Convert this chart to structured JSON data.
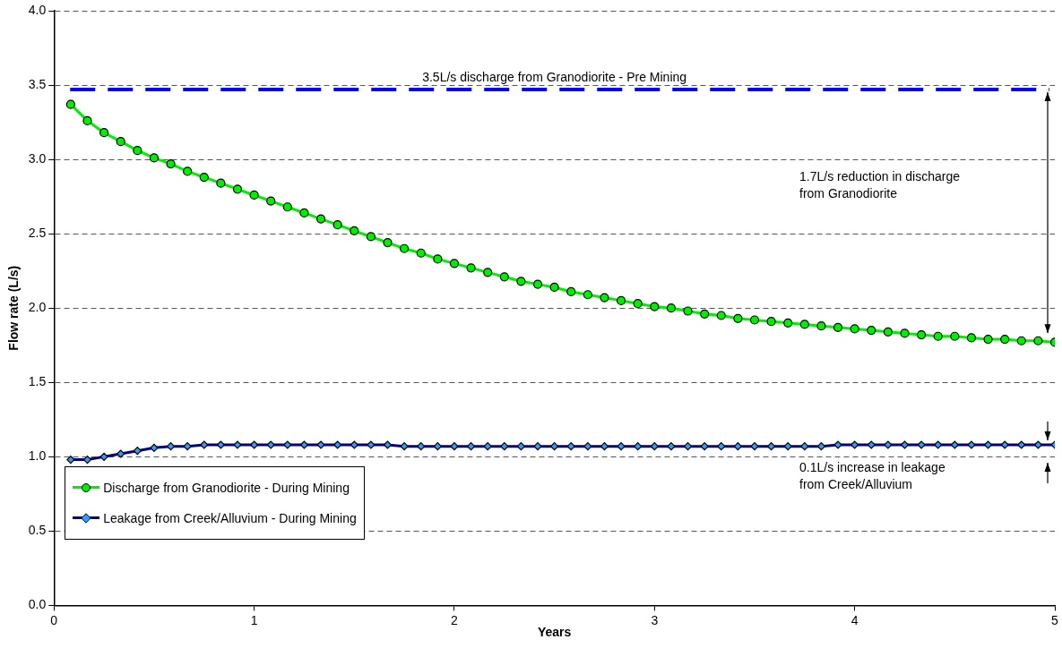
{
  "chart_data": {
    "type": "line",
    "xlabel": "Years",
    "ylabel": "Flow rate (L/s)",
    "x": [
      0.0833,
      0.1667,
      0.25,
      0.3333,
      0.4167,
      0.5,
      0.5833,
      0.6667,
      0.75,
      0.8333,
      0.9167,
      1,
      1.0833,
      1.1667,
      1.25,
      1.3333,
      1.4167,
      1.5,
      1.5833,
      1.6667,
      1.75,
      1.8333,
      1.9167,
      2,
      2.0833,
      2.1667,
      2.25,
      2.3333,
      2.4167,
      2.5,
      2.5833,
      2.6667,
      2.75,
      2.8333,
      2.9167,
      3,
      3.0833,
      3.1667,
      3.25,
      3.3333,
      3.4167,
      3.5,
      3.5833,
      3.6667,
      3.75,
      3.8333,
      3.9167,
      4,
      4.0833,
      4.1667,
      4.25,
      4.3333,
      4.4167,
      4.5,
      4.5833,
      4.6667,
      4.75,
      4.8333,
      4.9167,
      5
    ],
    "series": [
      {
        "name": "Discharge from Granodiorite - During Mining",
        "color": "#00ee00",
        "marker": "circle",
        "values": [
          3.37,
          3.26,
          3.18,
          3.12,
          3.06,
          3.01,
          2.97,
          2.92,
          2.88,
          2.84,
          2.8,
          2.76,
          2.72,
          2.68,
          2.64,
          2.6,
          2.56,
          2.52,
          2.48,
          2.44,
          2.4,
          2.37,
          2.33,
          2.3,
          2.27,
          2.24,
          2.21,
          2.18,
          2.16,
          2.14,
          2.11,
          2.09,
          2.07,
          2.05,
          2.03,
          2.01,
          2.0,
          1.98,
          1.96,
          1.95,
          1.93,
          1.92,
          1.91,
          1.9,
          1.89,
          1.88,
          1.87,
          1.86,
          1.85,
          1.84,
          1.83,
          1.82,
          1.81,
          1.81,
          1.8,
          1.79,
          1.79,
          1.78,
          1.78,
          1.77
        ]
      },
      {
        "name": "Leakage from Creek/Alluvium - During Mining",
        "color": "#000080",
        "marker": "diamond",
        "values": [
          0.98,
          0.98,
          1.0,
          1.02,
          1.04,
          1.06,
          1.07,
          1.07,
          1.08,
          1.08,
          1.08,
          1.08,
          1.08,
          1.08,
          1.08,
          1.08,
          1.08,
          1.08,
          1.08,
          1.08,
          1.07,
          1.07,
          1.07,
          1.07,
          1.07,
          1.07,
          1.07,
          1.07,
          1.07,
          1.07,
          1.07,
          1.07,
          1.07,
          1.07,
          1.07,
          1.07,
          1.07,
          1.07,
          1.07,
          1.07,
          1.07,
          1.07,
          1.07,
          1.07,
          1.07,
          1.07,
          1.08,
          1.08,
          1.08,
          1.08,
          1.08,
          1.08,
          1.08,
          1.08,
          1.08,
          1.08,
          1.08,
          1.08,
          1.08,
          1.08
        ]
      }
    ],
    "xlim": [
      0,
      5
    ],
    "xticks": [
      0,
      1,
      2,
      3,
      4,
      5
    ],
    "ylim": [
      0,
      4
    ],
    "yticks": [
      {
        "value": 0,
        "label": "0.0"
      },
      {
        "value": 0.5,
        "label": "0.5"
      },
      {
        "value": 1,
        "label": "1.0"
      },
      {
        "value": 1.5,
        "label": "1.5"
      },
      {
        "value": 2,
        "label": "2.0"
      },
      {
        "value": 2.5,
        "label": "2.5"
      },
      {
        "value": 3,
        "label": "3.0"
      },
      {
        "value": 3.5,
        "label": "3.5"
      },
      {
        "value": 4,
        "label": "4.0"
      }
    ],
    "ref_lines": [
      {
        "axis": "y",
        "value": 3.47,
        "label": "3.5L/s discharge from Granodiorite - Pre Mining",
        "color": "#0000ff",
        "line_style": "dashed"
      }
    ],
    "annotations": [
      "1.7L/s reduction in discharge\nfrom Granodiorite",
      "0.1L/s increase in leakage\nfrom Creek/Alluvium"
    ],
    "grid": "y",
    "legend": "bottom left",
    "line_style": "solid"
  }
}
